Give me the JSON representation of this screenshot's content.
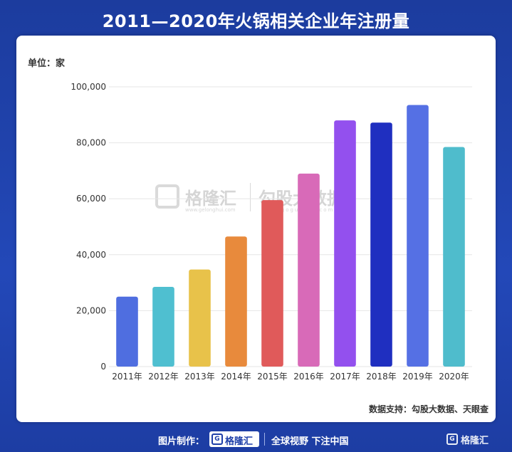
{
  "header": {
    "title": "2011—2020年火锅相关企业年注册量"
  },
  "card": {
    "unit_label": "单位：家",
    "source_label": "数据支持：勾股大数据、天眼查"
  },
  "watermark": {
    "brand": "格隆汇",
    "brand_url": "www.gelonghui.com",
    "partner": "勾股大数据",
    "partner_url": "www.gogudata.com",
    "logo_glyph": "G"
  },
  "footer": {
    "credit_label": "图片制作：",
    "logo_glyph": "G",
    "logo_text": "格隆汇",
    "slogan": "全球视野 下注中国",
    "corner_logo_text": "格隆汇"
  },
  "chart_data": {
    "type": "bar",
    "categories": [
      "2011年",
      "2012年",
      "2013年",
      "2014年",
      "2015年",
      "2016年",
      "2017年",
      "2018年",
      "2019年",
      "2020年"
    ],
    "values": [
      25000,
      28500,
      34700,
      46500,
      59500,
      69000,
      88000,
      87200,
      93500,
      78500
    ],
    "colors": [
      "#4f6ee0",
      "#4fbfd0",
      "#e8c24a",
      "#e88a3c",
      "#e05a5a",
      "#d86ab8",
      "#9350ee",
      "#1f2fc0",
      "#5570e4",
      "#4fbccc"
    ],
    "yticks": [
      0,
      20000,
      40000,
      60000,
      80000,
      100000
    ],
    "ytick_labels": [
      "0",
      "20,000",
      "40,000",
      "60,000",
      "80,000",
      "100,000"
    ],
    "ylim": [
      0,
      100000
    ],
    "grid": true,
    "title": "2011—2020年火锅相关企业年注册量"
  }
}
